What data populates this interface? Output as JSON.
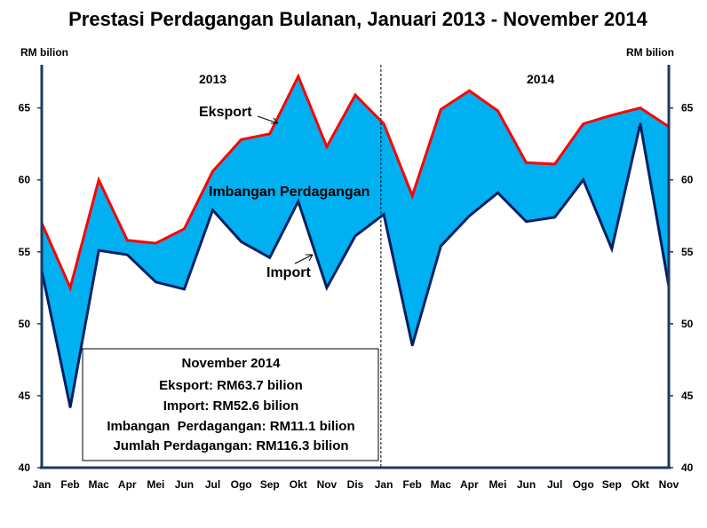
{
  "colors": {
    "export_line": "#ff0000",
    "import_line": "#002060",
    "balance_fill": "#00b0f0",
    "axis": "#1f3864",
    "box_border": "#000000"
  },
  "chart_data": {
    "type": "area",
    "title": "Prestasi Perdagangan Bulanan, Januari 2013 - November 2014",
    "ylabel_left": "RM bilion",
    "ylabel_right": "RM bilion",
    "ylim": [
      40,
      68
    ],
    "yticks": [
      40,
      45,
      50,
      55,
      60,
      65
    ],
    "grid": false,
    "categories": [
      "Jan",
      "Feb",
      "Mac",
      "Apr",
      "Mei",
      "Jun",
      "Jul",
      "Ogo",
      "Sep",
      "Okt",
      "Nov",
      "Dis",
      "Jan",
      "Feb",
      "Mac",
      "Apr",
      "Mei",
      "Jun",
      "Jul",
      "Ogo",
      "Sep",
      "Okt",
      "Nov"
    ],
    "year_labels": [
      {
        "label": "2013",
        "center_index": 6
      },
      {
        "label": "2014",
        "center_index": 17.5
      }
    ],
    "divider_after_index": 11.9,
    "series": [
      {
        "name": "Eksport",
        "values": [
          57.0,
          52.5,
          60.0,
          55.8,
          55.6,
          56.6,
          60.6,
          62.8,
          63.2,
          67.2,
          62.3,
          65.9,
          63.9,
          58.9,
          64.9,
          66.2,
          64.8,
          61.2,
          61.1,
          63.9,
          64.5,
          65.0,
          63.7
        ]
      },
      {
        "name": "Import",
        "values": [
          53.7,
          44.2,
          55.1,
          54.8,
          52.9,
          52.4,
          57.9,
          55.7,
          54.6,
          58.5,
          52.5,
          56.1,
          57.6,
          48.5,
          55.4,
          57.5,
          59.1,
          57.1,
          57.4,
          60.0,
          55.2,
          63.9,
          52.6
        ]
      }
    ],
    "annotations": {
      "export_label": "Eksport",
      "import_label": "Import",
      "balance_label": "Imbangan Perdagangan"
    },
    "info_box": {
      "heading": "November 2014",
      "lines": [
        "Eksport: RM63.7 bilion",
        "Import: RM52.6 bilion",
        "Imbangan  Perdagangan: RM11.1 bilion",
        "Jumlah Perdagangan: RM116.3 bilion"
      ]
    }
  }
}
